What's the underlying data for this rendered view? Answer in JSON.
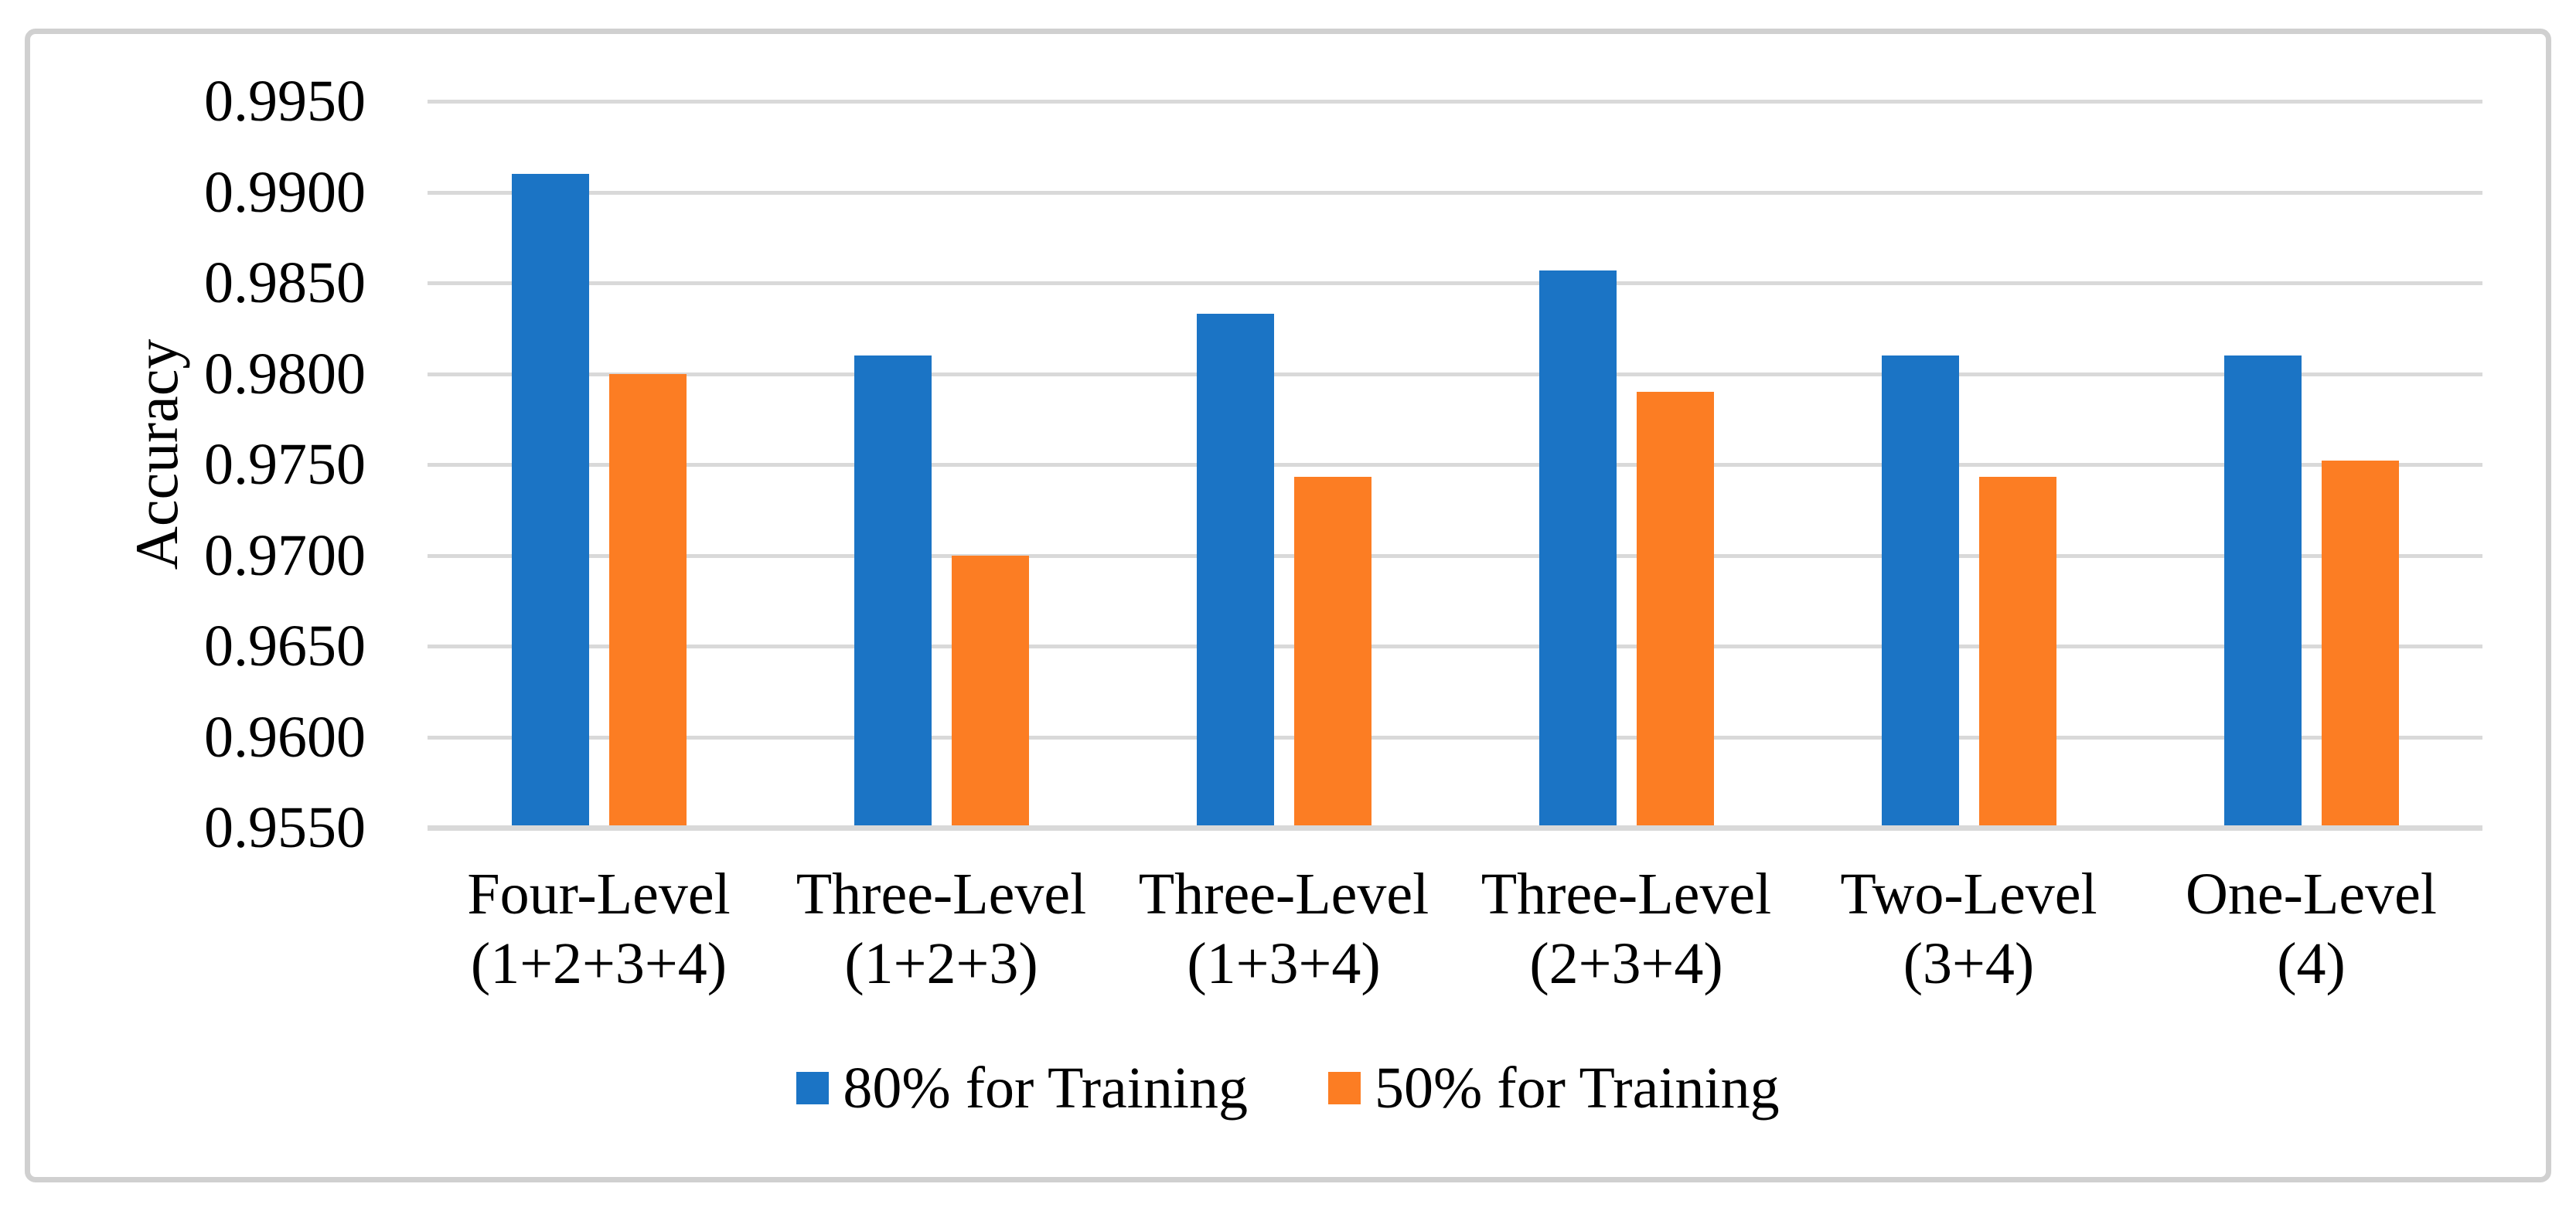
{
  "chart_data": {
    "type": "bar",
    "y_axis_label": "Accuracy",
    "ylim": [
      0.955,
      0.995
    ],
    "ytick_step": 0.005,
    "ytick_decimals": 4,
    "grid": true,
    "legend_position": "bottom-center",
    "categories": [
      {
        "line1": "Four-Level",
        "line2": "(1+2+3+4)"
      },
      {
        "line1": "Three-Level",
        "line2": "(1+2+3)"
      },
      {
        "line1": "Three-Level",
        "line2": "(1+3+4)"
      },
      {
        "line1": "Three-Level",
        "line2": "(2+3+4)"
      },
      {
        "line1": "Two-Level",
        "line2": "(3+4)"
      },
      {
        "line1": "One-Level",
        "line2": "(4)"
      }
    ],
    "series": [
      {
        "name": "80% for Training",
        "color": "#1b74c5",
        "values": [
          0.991,
          0.981,
          0.9833,
          0.9857,
          0.981,
          0.981
        ]
      },
      {
        "name": "50% for Training",
        "color": "#fc7d23",
        "values": [
          0.98,
          0.97,
          0.9743,
          0.979,
          0.9743,
          0.9752
        ]
      }
    ]
  },
  "colors": {
    "gridline": "#d9d9d9",
    "frame_border": "#d0d0d0",
    "axis_text": "#000000",
    "background": "#ffffff"
  }
}
